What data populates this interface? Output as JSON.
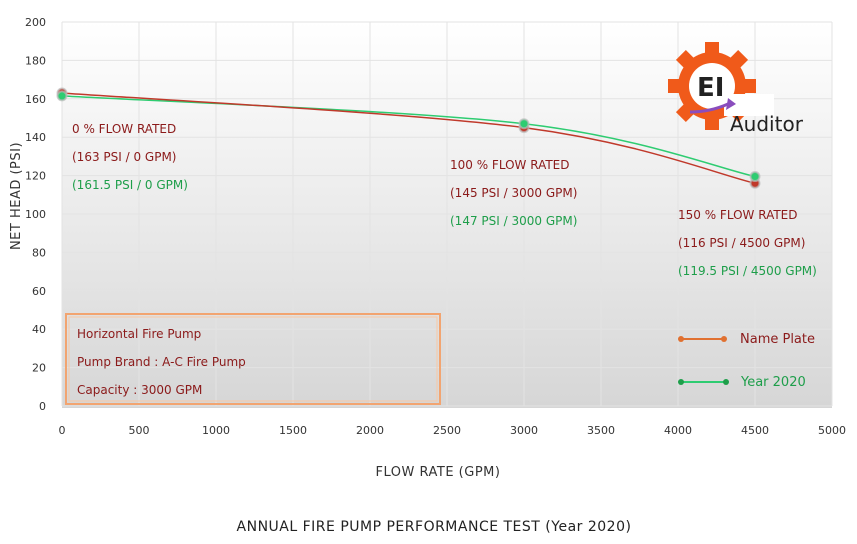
{
  "chart_data": {
    "type": "line",
    "title": "ANNUAL FIRE PUMP PERFORMANCE TEST (Year 2020)",
    "xlabel": "FLOW RATE (GPM)",
    "ylabel": "NET HEAD (PSI)",
    "xlim": [
      0,
      5000
    ],
    "ylim": [
      0,
      200
    ],
    "x_ticks": [
      0,
      500,
      1000,
      1500,
      2000,
      2500,
      3000,
      3500,
      4000,
      4500,
      5000
    ],
    "y_ticks": [
      0,
      20,
      40,
      60,
      80,
      100,
      120,
      140,
      160,
      180,
      200
    ],
    "grid": true,
    "legend_position": "bottom-right",
    "series": [
      {
        "name": "Name Plate",
        "color": "#c0392b",
        "marker_color": "#e07030",
        "x": [
          0,
          3000,
          4500
        ],
        "y": [
          163,
          145,
          116
        ]
      },
      {
        "name": "Year 2020",
        "color": "#2ecc71",
        "marker_color": "#1e9e4a",
        "x": [
          0,
          3000,
          4500
        ],
        "y": [
          161.5,
          147,
          119.5
        ]
      }
    ],
    "annotations": [
      {
        "heading": "0 % FLOW RATED",
        "nameplate": "(163 PSI / 0 GPM)",
        "year2020": "(161.5 PSI / 0 GPM)"
      },
      {
        "heading": "100 % FLOW RATED",
        "nameplate": "(145 PSI / 3000 GPM)",
        "year2020": "(147 PSI / 3000 GPM)"
      },
      {
        "heading": "150 % FLOW RATED",
        "nameplate": "(116 PSI / 4500 GPM)",
        "year2020": "(119.5 PSI / 4500 GPM)"
      }
    ]
  },
  "info_box": {
    "line1": "Horizontal Fire Pump",
    "line2": "Pump Brand : A-C Fire Pump",
    "line3": "Capacity : 3000 GPM"
  },
  "logo": {
    "text_main": "EI",
    "text_sub": "Auditor",
    "gear_color": "#f05a1a"
  }
}
